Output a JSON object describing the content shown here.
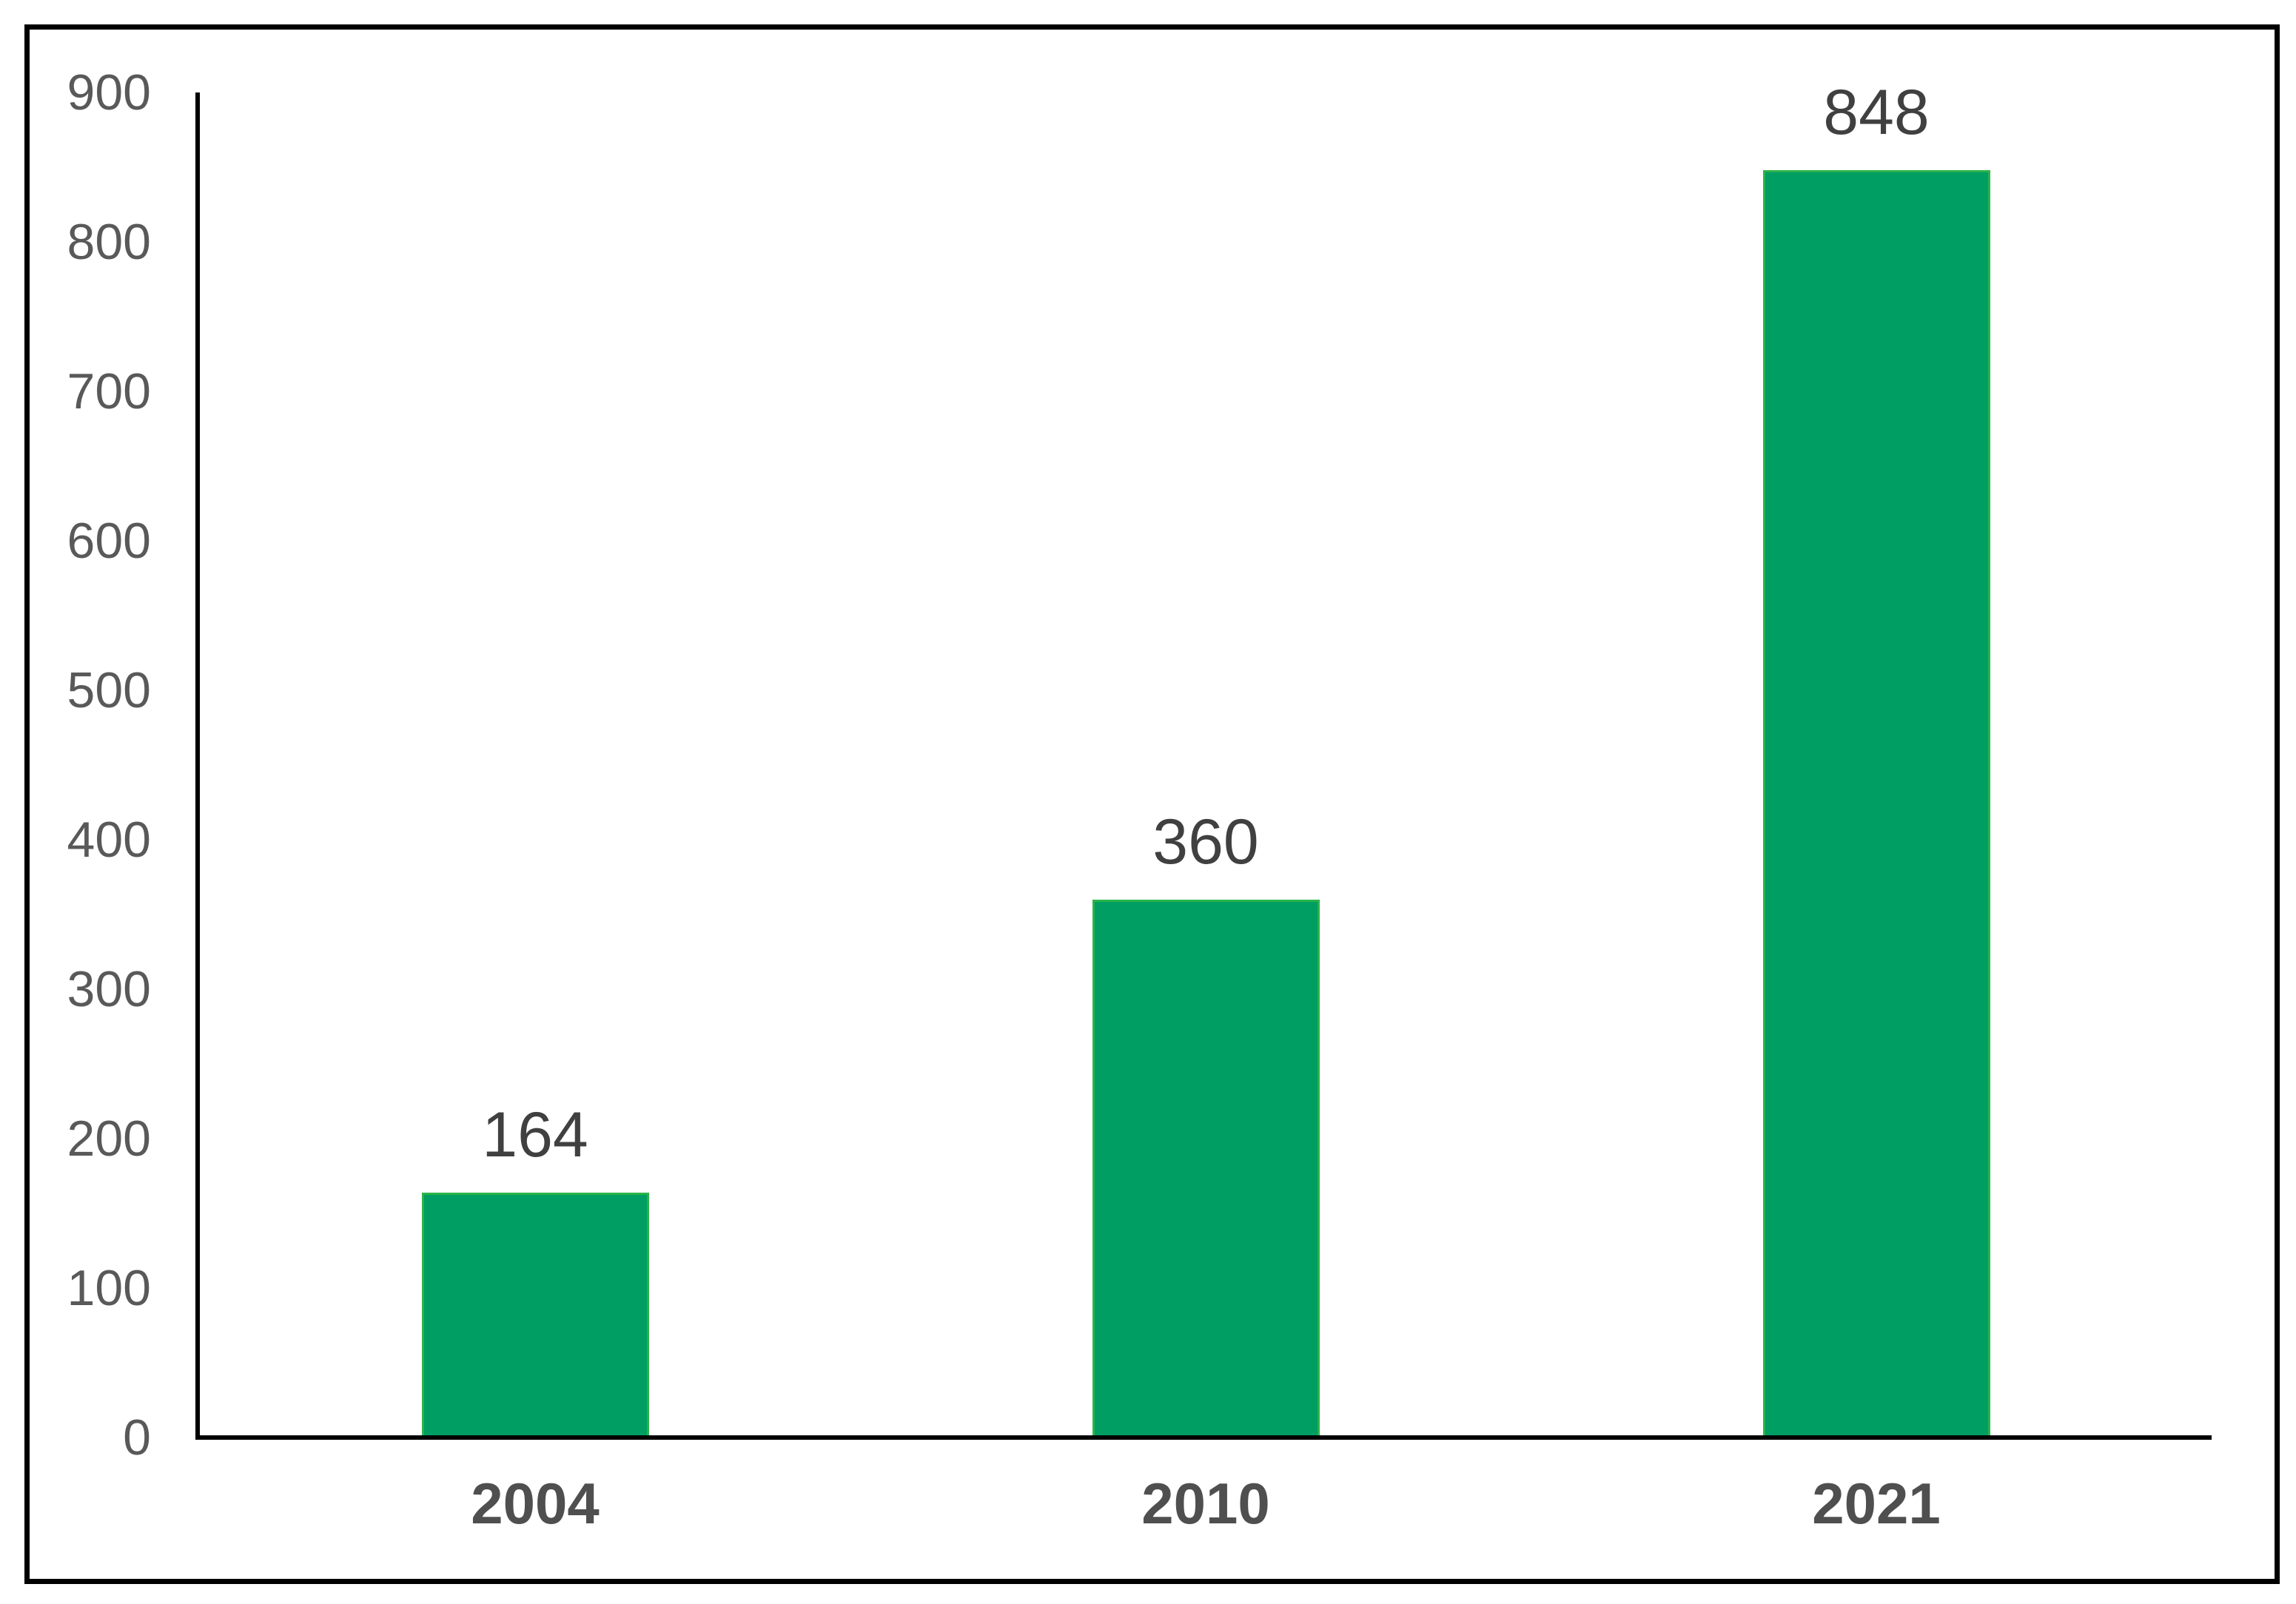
{
  "chart_data": {
    "type": "bar",
    "title": "",
    "xlabel": "",
    "ylabel": "",
    "categories": [
      "2004",
      "2010",
      "2021"
    ],
    "values": [
      164,
      360,
      848
    ],
    "data_labels": [
      "164",
      "360",
      "848"
    ],
    "ylim": [
      0,
      900
    ],
    "yticks": [
      0,
      100,
      200,
      300,
      400,
      500,
      600,
      700,
      800,
      900
    ],
    "grid": false,
    "legend": "none",
    "colors": {
      "bar_fill": "#009E62",
      "bar_border": "#2BB34B",
      "axis_line": "#000000",
      "tick_label": "#595959",
      "data_label": "#404040",
      "category_label": "#4F4F4F",
      "frame_border": "#000000",
      "background": "#FFFFFF"
    }
  }
}
